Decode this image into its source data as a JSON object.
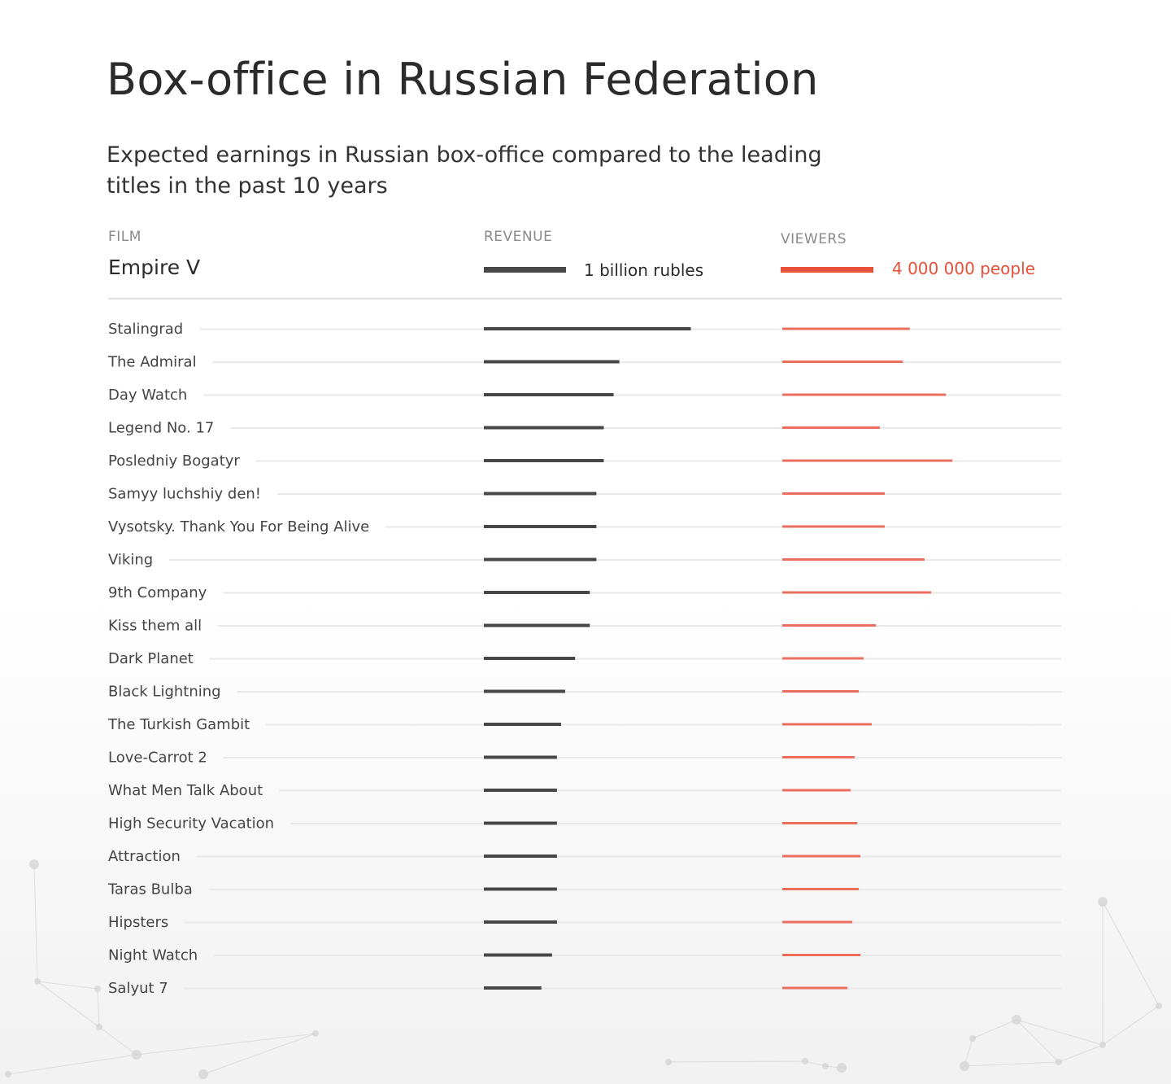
{
  "title": "Box-office in Russian Federation",
  "subtitle": "Expected earnings in Russian box-office compared to the leading titles in the past 10 years",
  "columns": {
    "film": "FILM",
    "revenue": "REVENUE",
    "viewers": "VIEWERS"
  },
  "reference": {
    "film": "Empire V",
    "revenue_label": "1 billion rubles",
    "viewers_label": "4 000 000 people"
  },
  "colors": {
    "revenue": "#474747",
    "viewers": "#e8503a",
    "viewers_rows": "#ea6f5f",
    "row_line": "#e9e9e9"
  },
  "chart_data": {
    "type": "bar",
    "title": "Box-office in Russian Federation",
    "reference": {
      "film": "Empire V",
      "revenue": 1.0,
      "viewers": 4000000
    },
    "revenue_unit": "billion rubles",
    "viewers_unit": "people",
    "categories": [
      "Stalingrad",
      "The Admiral",
      "Day Watch",
      "Legend No. 17",
      "Posledniy Bogatyr",
      "Samyy luchshiy den!",
      "Vysotsky. Thank You For Being Alive",
      "Viking",
      "9th Company",
      "Kiss them all",
      "Dark Planet",
      "Black Lightning",
      "The Turkish Gambit",
      "Love-Carrot 2",
      "What Men Talk About",
      "High Security Vacation",
      "Attraction",
      "Taras Bulba",
      "Hipsters",
      "Night Watch",
      "Salyut 7"
    ],
    "series": [
      {
        "name": "REVENUE",
        "values": [
          2.52,
          1.65,
          1.58,
          1.46,
          1.46,
          1.37,
          1.37,
          1.37,
          1.29,
          1.29,
          1.11,
          0.99,
          0.94,
          0.89,
          0.89,
          0.89,
          0.89,
          0.89,
          0.89,
          0.83,
          0.7
        ]
      },
      {
        "name": "VIEWERS",
        "values": [
          5500000,
          5200000,
          7060000,
          4210000,
          7340000,
          4420000,
          4420000,
          6140000,
          6420000,
          4040000,
          3510000,
          3300000,
          3860000,
          3120000,
          2950000,
          3230000,
          3370000,
          3300000,
          3020000,
          3370000,
          2810000
        ]
      }
    ]
  }
}
